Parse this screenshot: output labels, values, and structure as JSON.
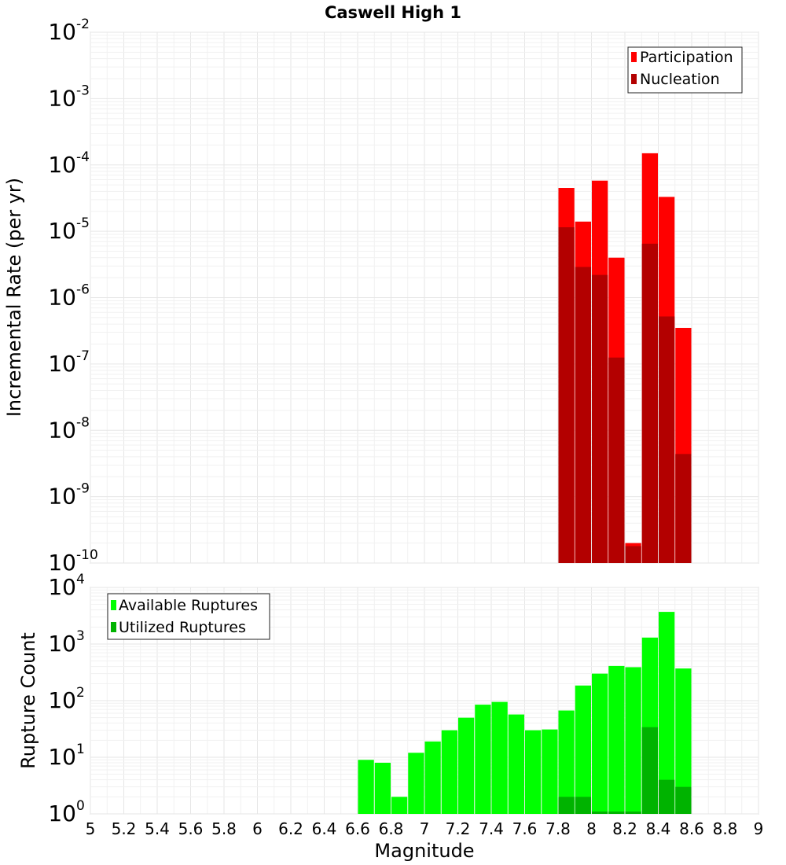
{
  "chart_data": [
    {
      "type": "bar",
      "title": "Caswell High 1",
      "xlabel": "",
      "ylabel": "Incremental Rate (per yr)",
      "x_scale": "linear",
      "y_scale": "log",
      "xlim": [
        5,
        9
      ],
      "ylim": [
        1e-10,
        0.01
      ],
      "y_tick_exponents": [
        -10,
        -9,
        -8,
        -7,
        -6,
        -5,
        -4,
        -3,
        -2
      ],
      "grid": true,
      "legend_position": "top-right",
      "legend": [
        "Participation",
        "Nucleation"
      ],
      "series": [
        {
          "name": "Participation",
          "color": "#ff0000",
          "x": [
            7.85,
            7.95,
            8.05,
            8.15,
            8.25,
            8.35,
            8.45,
            8.55
          ],
          "values": [
            4.5e-05,
            1.4e-05,
            5.8e-05,
            4e-06,
            2e-10,
            0.00015,
            3.3e-05,
            3.5e-07
          ]
        },
        {
          "name": "Nucleation",
          "color": "#b30000",
          "x": [
            7.85,
            7.95,
            8.05,
            8.15,
            8.25,
            8.35,
            8.45,
            8.55
          ],
          "values": [
            1.15e-05,
            2.9e-06,
            2.2e-06,
            1.25e-07,
            1.8e-10,
            6.5e-06,
            5.2e-07,
            4.4e-09
          ]
        }
      ]
    },
    {
      "type": "bar",
      "title": "",
      "xlabel": "Magnitude",
      "ylabel": "Rupture Count",
      "x_scale": "linear",
      "y_scale": "log",
      "xlim": [
        5,
        9
      ],
      "ylim": [
        1,
        10000
      ],
      "x_ticks": [
        "5",
        "5.2",
        "5.4",
        "5.6",
        "5.8",
        "6",
        "6.2",
        "6.4",
        "6.6",
        "6.8",
        "7",
        "7.2",
        "7.4",
        "7.6",
        "7.8",
        "8",
        "8.2",
        "8.4",
        "8.6",
        "8.8",
        "9"
      ],
      "y_tick_exponents": [
        0,
        1,
        2,
        3,
        4
      ],
      "grid": true,
      "legend_position": "top-left",
      "legend": [
        "Available Ruptures",
        "Utilized Ruptures"
      ],
      "series": [
        {
          "name": "Available Ruptures",
          "color": "#00ff00",
          "x": [
            6.65,
            6.75,
            6.85,
            6.95,
            7.05,
            7.15,
            7.25,
            7.35,
            7.45,
            7.55,
            7.65,
            7.75,
            7.85,
            7.95,
            8.05,
            8.15,
            8.25,
            8.35,
            8.45,
            8.55
          ],
          "values": [
            9,
            8,
            2,
            12,
            19,
            30,
            50,
            85,
            95,
            57,
            30,
            31,
            67,
            185,
            300,
            410,
            390,
            1300,
            3700,
            370
          ]
        },
        {
          "name": "Utilized Ruptures",
          "color": "#00b300",
          "x": [
            7.85,
            7.95,
            8.05,
            8.15,
            8.25,
            8.35,
            8.45,
            8.55
          ],
          "values": [
            2,
            2,
            1.1,
            1.1,
            1.1,
            34,
            4,
            3
          ]
        }
      ]
    }
  ]
}
